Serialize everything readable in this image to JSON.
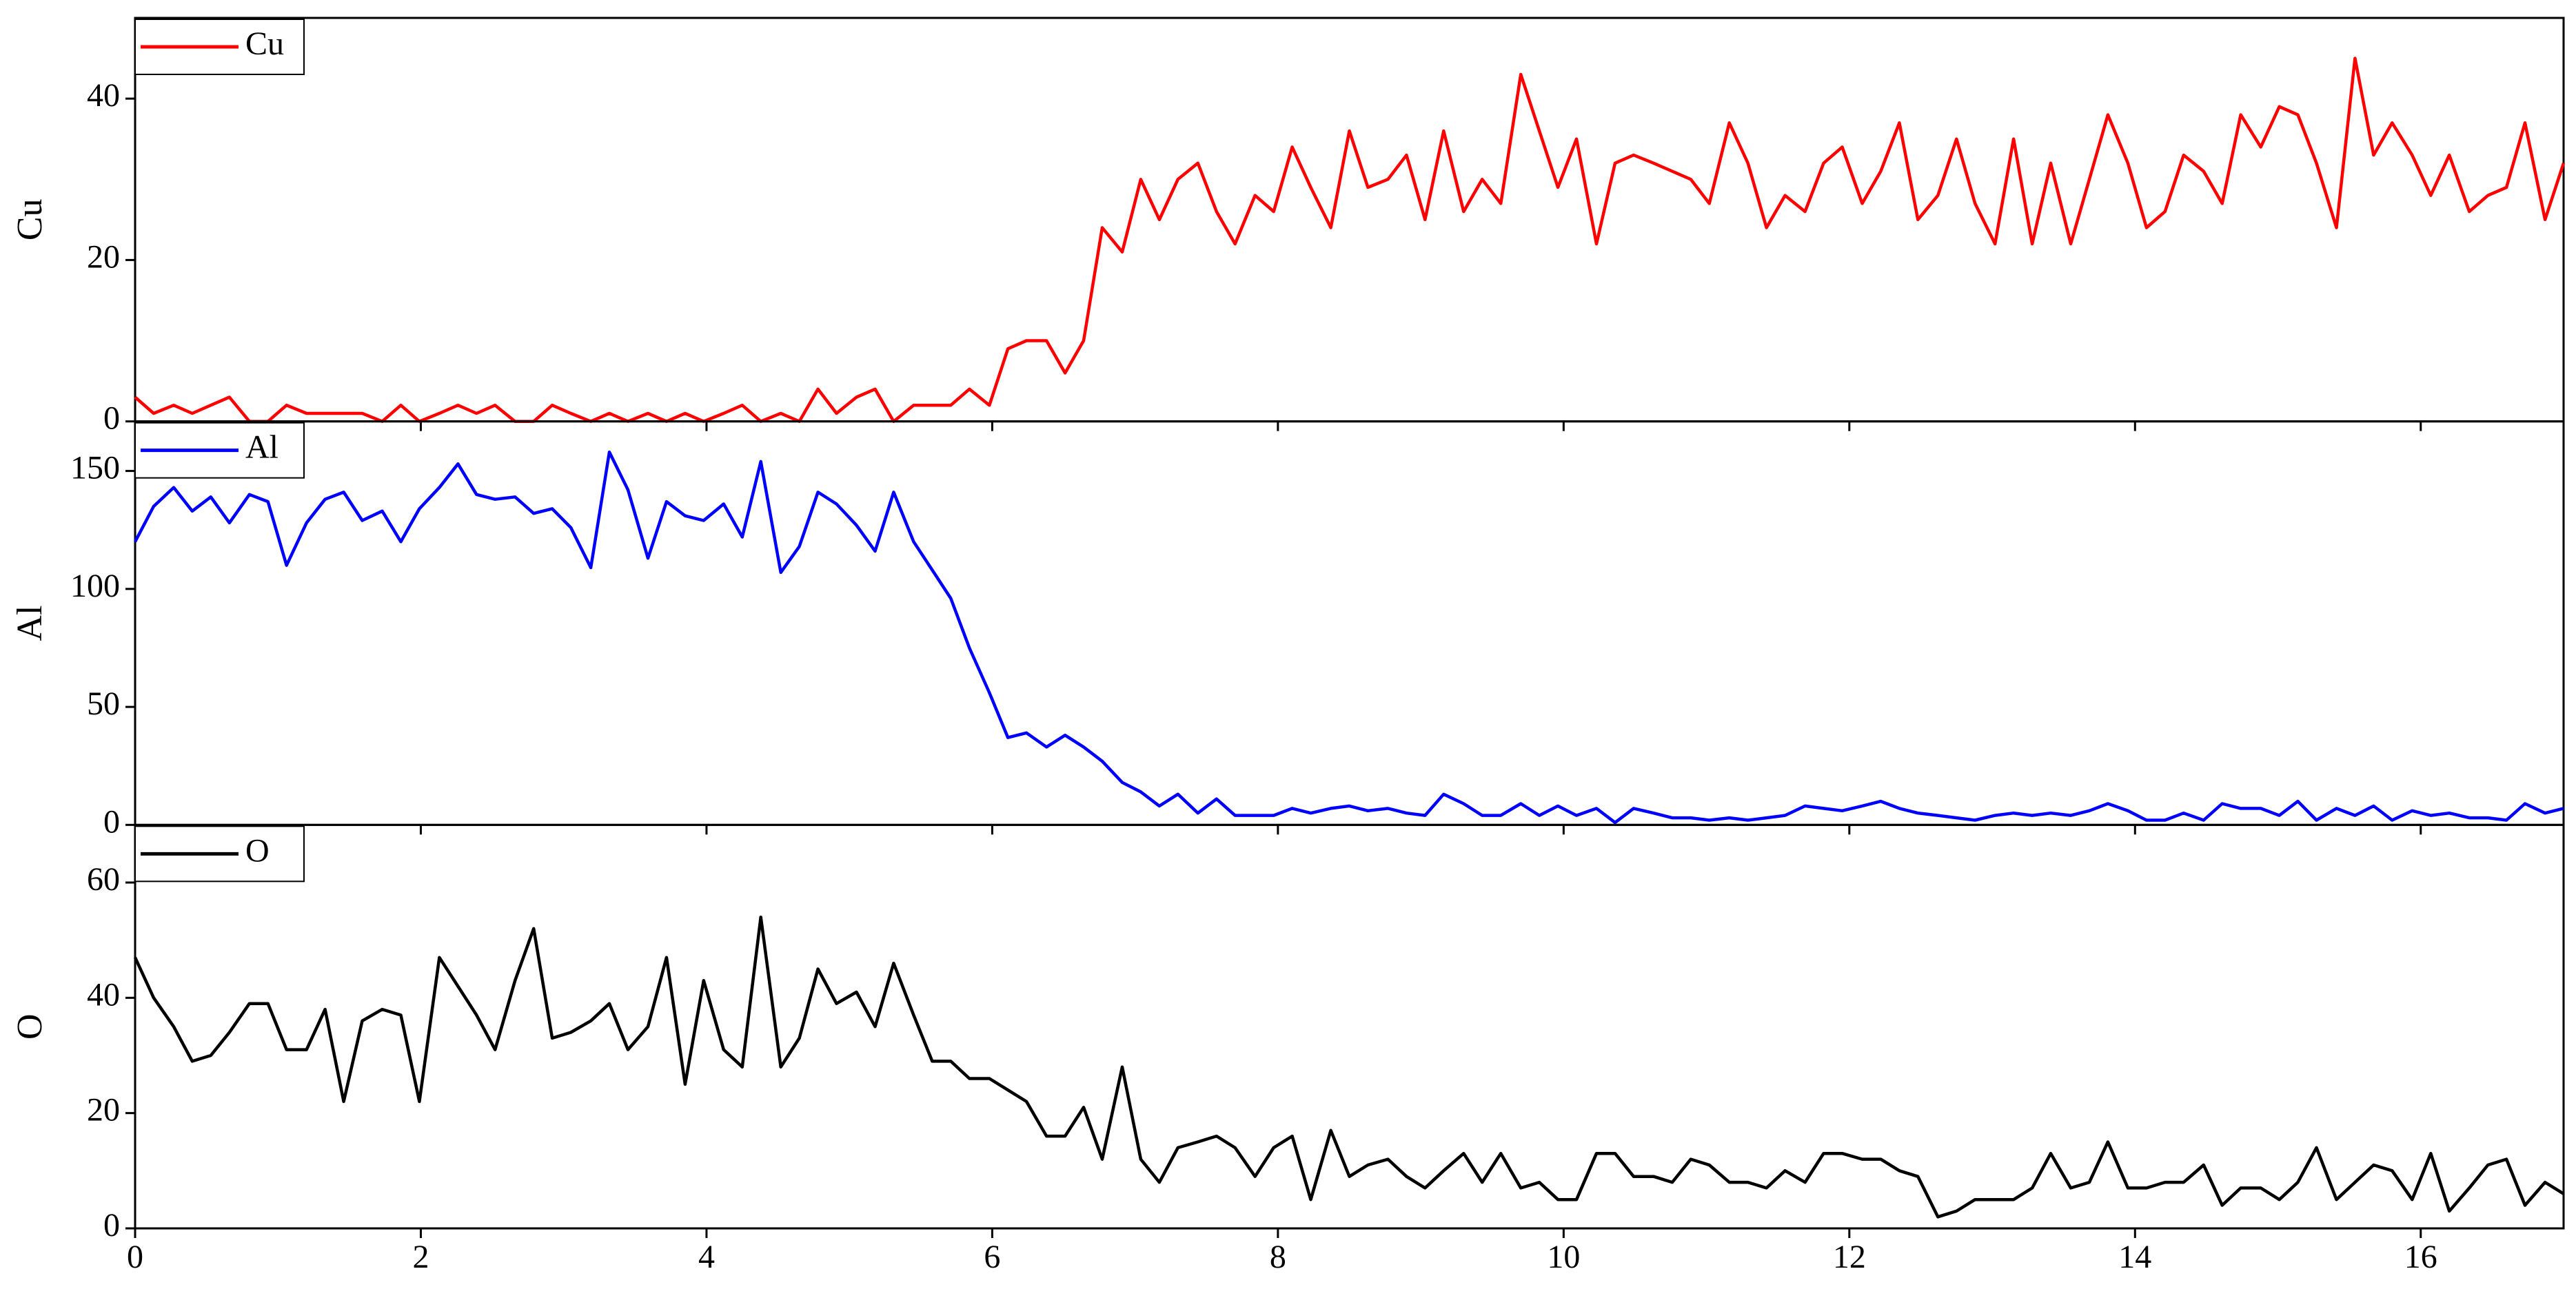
{
  "chart_data": {
    "type": "line",
    "x": [
      0,
      0.13,
      0.27,
      0.4,
      0.53,
      0.66,
      0.8,
      0.93,
      1.06,
      1.2,
      1.33,
      1.46,
      1.59,
      1.73,
      1.86,
      1.99,
      2.13,
      2.26,
      2.39,
      2.52,
      2.66,
      2.79,
      2.92,
      3.05,
      3.19,
      3.32,
      3.45,
      3.59,
      3.72,
      3.85,
      3.98,
      4.12,
      4.25,
      4.38,
      4.52,
      4.65,
      4.78,
      4.91,
      5.05,
      5.18,
      5.31,
      5.45,
      5.58,
      5.71,
      5.84,
      5.98,
      6.11,
      6.24,
      6.38,
      6.51,
      6.64,
      6.77,
      6.91,
      7.04,
      7.17,
      7.3,
      7.44,
      7.57,
      7.7,
      7.84,
      7.97,
      8.1,
      8.23,
      8.37,
      8.5,
      8.63,
      8.77,
      8.9,
      9.03,
      9.16,
      9.3,
      9.43,
      9.56,
      9.7,
      9.83,
      9.96,
      10.09,
      10.23,
      10.36,
      10.49,
      10.63,
      10.76,
      10.89,
      11.02,
      11.16,
      11.29,
      11.42,
      11.55,
      11.69,
      11.82,
      11.95,
      12.09,
      12.22,
      12.35,
      12.48,
      12.62,
      12.75,
      12.88,
      13.02,
      13.15,
      13.28,
      13.41,
      13.55,
      13.68,
      13.81,
      13.95,
      14.08,
      14.21,
      14.34,
      14.48,
      14.61,
      14.74,
      14.88,
      15.01,
      15.14,
      15.27,
      15.41,
      15.54,
      15.67,
      15.8,
      15.94,
      16.07,
      16.2,
      16.34,
      16.47,
      16.6,
      16.73,
      16.87,
      17.0
    ],
    "xlim": [
      0,
      17
    ],
    "xticks": [
      0,
      2,
      4,
      6,
      8,
      10,
      12,
      14,
      16
    ],
    "legend": "upper left",
    "panels": [
      {
        "ylabel": "Cu",
        "ylim": [
          0,
          50
        ],
        "yticks": [
          0,
          20,
          40
        ],
        "series": [
          {
            "name": "Cu",
            "color": "#ff0000",
            "values": [
              3,
              1,
              2,
              1,
              2,
              3,
              0,
              0,
              2,
              1,
              1,
              1,
              1,
              0,
              2,
              0,
              1,
              2,
              1,
              2,
              0,
              0,
              2,
              1,
              0,
              1,
              0,
              1,
              0,
              1,
              0,
              1,
              2,
              0,
              1,
              0,
              4,
              1,
              3,
              4,
              0,
              2,
              2,
              2,
              4,
              2,
              9,
              10,
              10,
              6,
              10,
              24,
              21,
              30,
              25,
              30,
              32,
              26,
              22,
              28,
              26,
              34,
              29,
              24,
              36,
              29,
              30,
              33,
              25,
              36,
              26,
              30,
              27,
              43,
              36,
              29,
              35,
              22,
              32,
              33,
              32,
              31,
              30,
              27,
              37,
              32,
              24,
              28,
              26,
              32,
              34,
              27,
              31,
              37,
              25,
              28,
              35,
              27,
              22,
              35,
              22,
              32,
              22,
              30,
              38,
              32,
              24,
              26,
              33,
              31,
              27,
              38,
              34,
              39,
              38,
              32,
              24,
              45,
              33,
              37,
              33,
              28,
              33,
              26,
              28,
              29,
              37,
              25,
              32
            ]
          }
        ]
      },
      {
        "ylabel": "Al",
        "ylim": [
          0,
          171
        ],
        "yticks": [
          0,
          50,
          100,
          150
        ],
        "series": [
          {
            "name": "Al",
            "color": "#0000ff",
            "values": [
              120,
              135,
              143,
              133,
              139,
              128,
              140,
              137,
              110,
              128,
              138,
              141,
              129,
              133,
              120,
              134,
              143,
              153,
              140,
              138,
              139,
              132,
              134,
              126,
              109,
              158,
              142,
              113,
              137,
              131,
              129,
              136,
              122,
              154,
              107,
              118,
              141,
              136,
              127,
              116,
              141,
              120,
              108,
              96,
              75,
              56,
              37,
              39,
              33,
              38,
              33,
              27,
              18,
              14,
              8,
              13,
              5,
              11,
              4,
              4,
              4,
              7,
              5,
              7,
              8,
              6,
              7,
              5,
              4,
              13,
              9,
              4,
              4,
              9,
              4,
              8,
              4,
              7,
              1,
              7,
              5,
              3,
              3,
              2,
              3,
              2,
              3,
              4,
              8,
              7,
              6,
              8,
              10,
              7,
              5,
              4,
              3,
              2,
              4,
              5,
              4,
              5,
              4,
              6,
              9,
              6,
              2,
              2,
              5,
              2,
              9,
              7,
              7,
              4,
              10,
              2,
              7,
              4,
              8,
              2,
              6,
              4,
              5,
              3,
              3,
              2,
              9,
              5,
              7
            ]
          }
        ]
      },
      {
        "ylabel": "O",
        "ylim": [
          0,
          70
        ],
        "yticks": [
          0,
          20,
          40,
          60
        ],
        "series": [
          {
            "name": "O",
            "color": "#000000",
            "values": [
              47,
              40,
              35,
              29,
              30,
              34,
              39,
              39,
              31,
              31,
              38,
              22,
              36,
              38,
              37,
              22,
              47,
              42,
              37,
              31,
              43,
              52,
              33,
              34,
              36,
              39,
              31,
              35,
              47,
              25,
              43,
              31,
              28,
              54,
              28,
              33,
              45,
              39,
              41,
              35,
              46,
              37,
              29,
              29,
              26,
              26,
              24,
              22,
              16,
              16,
              21,
              12,
              28,
              12,
              8,
              14,
              15,
              16,
              14,
              9,
              14,
              16,
              5,
              17,
              9,
              11,
              12,
              9,
              7,
              10,
              13,
              8,
              13,
              7,
              8,
              5,
              5,
              13,
              13,
              9,
              9,
              8,
              12,
              11,
              8,
              8,
              7,
              10,
              8,
              13,
              13,
              12,
              12,
              10,
              9,
              2,
              3,
              5,
              5,
              5,
              7,
              13,
              7,
              8,
              15,
              7,
              7,
              8,
              8,
              11,
              4,
              7,
              7,
              5,
              8,
              14,
              5,
              8,
              11,
              10,
              5,
              13,
              3,
              7,
              11,
              12,
              4,
              8,
              6
            ]
          }
        ]
      }
    ]
  }
}
